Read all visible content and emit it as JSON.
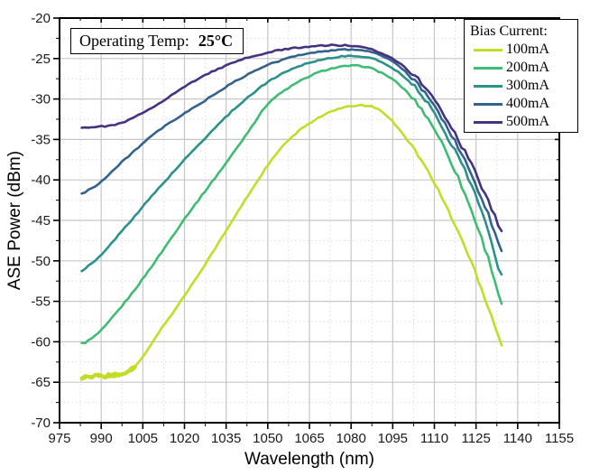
{
  "annotation": {
    "label": "Operating Temp:",
    "value": "25°C"
  },
  "legend": {
    "title": "Bias Current:"
  },
  "colors": {
    "grid_major": "#c6c6c6",
    "grid_minor": "#dddddd",
    "axis": "#000000",
    "text": "#1a1a1a"
  },
  "chart_data": {
    "type": "line",
    "title": "",
    "xlabel": "Wavelength (nm)",
    "ylabel": "ASE Power (dBm)",
    "xlim": [
      975,
      1155
    ],
    "ylim": [
      -70,
      -20
    ],
    "x_major_step": 15,
    "x_minor_step": 7.5,
    "y_major_step": 5,
    "y_minor_step": 2.5,
    "grid": "major-solid-minor-dotted",
    "legend_position": "top-right",
    "x": [
      983,
      985,
      990,
      995,
      1000,
      1005,
      1010,
      1015,
      1020,
      1025,
      1030,
      1035,
      1040,
      1045,
      1050,
      1055,
      1060,
      1065,
      1070,
      1075,
      1080,
      1085,
      1090,
      1095,
      1100,
      1105,
      1110,
      1115,
      1120,
      1125,
      1130,
      1135
    ],
    "series": [
      {
        "name": "100mA",
        "color": "#c3dd26",
        "values": [
          -64.4,
          -64.4,
          -64.3,
          -64.1,
          -63.6,
          -61.9,
          -59.2,
          -56.8,
          -54.3,
          -51.7,
          -49.0,
          -46.3,
          -43.5,
          -40.8,
          -38.2,
          -36.0,
          -34.3,
          -33.0,
          -32.0,
          -31.3,
          -30.9,
          -30.8,
          -31.3,
          -32.8,
          -34.9,
          -37.4,
          -40.4,
          -43.8,
          -47.5,
          -51.6,
          -56.2,
          -60.7
        ]
      },
      {
        "name": "200mA",
        "color": "#3fbc73",
        "values": [
          -60.2,
          -59.9,
          -58.6,
          -56.6,
          -54.5,
          -52.2,
          -49.8,
          -47.3,
          -44.8,
          -42.5,
          -40.2,
          -37.9,
          -35.5,
          -33.0,
          -30.6,
          -29.2,
          -28.1,
          -27.2,
          -26.5,
          -26.1,
          -25.9,
          -26.0,
          -26.6,
          -27.6,
          -29.1,
          -31.1,
          -33.7,
          -37.0,
          -40.9,
          -45.3,
          -50.3,
          -55.8
        ]
      },
      {
        "name": "300mA",
        "color": "#2b918b",
        "values": [
          -51.2,
          -50.7,
          -49.3,
          -47.3,
          -45.3,
          -43.3,
          -41.3,
          -39.4,
          -37.5,
          -35.7,
          -33.9,
          -32.2,
          -30.6,
          -29.2,
          -27.9,
          -26.9,
          -26.1,
          -25.5,
          -25.1,
          -24.8,
          -24.7,
          -24.8,
          -25.3,
          -26.2,
          -27.5,
          -29.3,
          -31.8,
          -34.8,
          -38.1,
          -42.0,
          -47.0,
          -52.5
        ]
      },
      {
        "name": "400mA",
        "color": "#33638d",
        "values": [
          -41.7,
          -41.3,
          -40.2,
          -38.6,
          -37.0,
          -35.5,
          -34.1,
          -32.9,
          -31.8,
          -30.7,
          -29.6,
          -28.5,
          -27.5,
          -26.6,
          -25.8,
          -25.2,
          -24.7,
          -24.3,
          -24.1,
          -23.95,
          -23.9,
          -24.0,
          -24.5,
          -25.4,
          -26.8,
          -28.6,
          -30.9,
          -33.7,
          -37.0,
          -40.7,
          -44.8,
          -49.4
        ]
      },
      {
        "name": "500mA",
        "color": "#46327e",
        "values": [
          -33.5,
          -33.5,
          -33.4,
          -33.2,
          -32.6,
          -31.7,
          -30.7,
          -29.6,
          -28.5,
          -27.5,
          -26.6,
          -25.9,
          -25.2,
          -24.7,
          -24.3,
          -23.9,
          -23.7,
          -23.5,
          -23.4,
          -23.35,
          -23.45,
          -23.7,
          -24.2,
          -25.0,
          -26.2,
          -27.9,
          -30.1,
          -32.8,
          -35.9,
          -39.3,
          -43.0,
          -46.8
        ]
      }
    ]
  }
}
